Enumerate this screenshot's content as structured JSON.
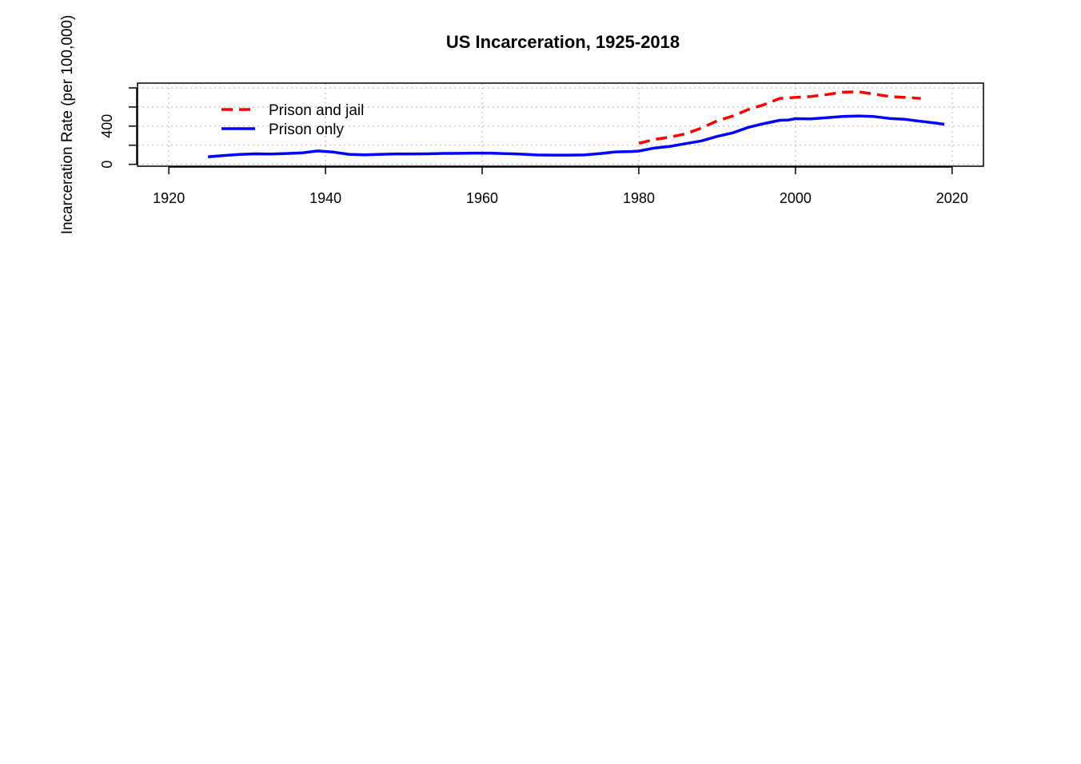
{
  "chart_data": {
    "type": "line",
    "title": "US Incarceration, 1925-2018",
    "xlabel": "",
    "ylabel": "Incarceration Rate (per 100,000)",
    "xlim": [
      1916,
      2024
    ],
    "ylim": [
      -20,
      850
    ],
    "x_ticks": [
      1920,
      1940,
      1960,
      1980,
      2000,
      2020
    ],
    "y_ticks": [
      0,
      200,
      400,
      600,
      800
    ],
    "y_tick_labels": [
      "0",
      "",
      "400",
      "",
      ""
    ],
    "grid": true,
    "legend_position": "top-left",
    "series": [
      {
        "name": "Prison and jail",
        "color": "#ff0000",
        "line_style": "dashed",
        "x": [
          1980,
          1982,
          1984,
          1986,
          1988,
          1990,
          1992,
          1994,
          1996,
          1998,
          2000,
          2002,
          2004,
          2006,
          2008,
          2010,
          2012,
          2014,
          2016
        ],
        "y": [
          220,
          260,
          285,
          320,
          380,
          455,
          505,
          575,
          625,
          690,
          700,
          710,
          730,
          755,
          760,
          735,
          710,
          700,
          690
        ]
      },
      {
        "name": "Prison only",
        "color": "#0000ff",
        "line_style": "solid",
        "x": [
          1925,
          1927,
          1929,
          1931,
          1933,
          1935,
          1937,
          1939,
          1941,
          1943,
          1945,
          1947,
          1949,
          1951,
          1953,
          1955,
          1957,
          1959,
          1961,
          1963,
          1965,
          1967,
          1969,
          1971,
          1973,
          1975,
          1977,
          1979,
          1980,
          1982,
          1984,
          1986,
          1988,
          1990,
          1992,
          1994,
          1996,
          1998,
          1999,
          2000,
          2002,
          2004,
          2006,
          2008,
          2010,
          2012,
          2014,
          2016,
          2018,
          2019
        ],
        "y": [
          79,
          92,
          104,
          110,
          107,
          113,
          120,
          140,
          128,
          105,
          100,
          105,
          109,
          109,
          110,
          114,
          115,
          117,
          117,
          112,
          106,
          98,
          96,
          96,
          98,
          112,
          130,
          134,
          139,
          171,
          188,
          217,
          245,
          292,
          330,
          387,
          427,
          461,
          463,
          478,
          476,
          488,
          501,
          506,
          500,
          480,
          471,
          450,
          431,
          419
        ]
      }
    ]
  }
}
